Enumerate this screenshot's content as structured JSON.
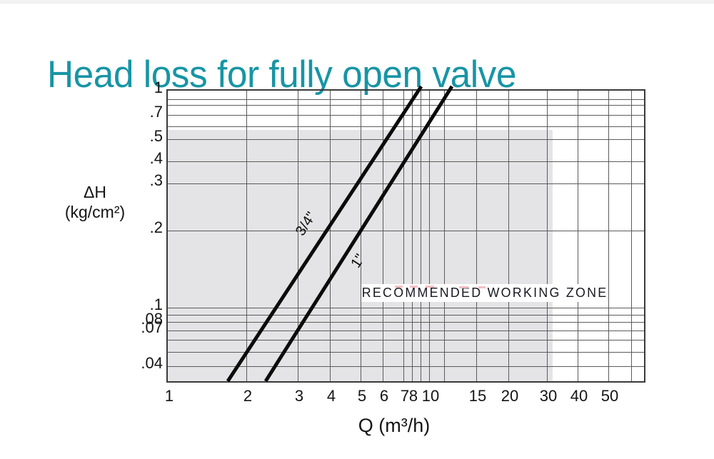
{
  "page": {
    "title": "Head loss for fully open valve",
    "title_color": "#1795A5"
  },
  "chart_data": {
    "type": "line",
    "title": "Head loss for fully open valve",
    "xlabel": "Q (m³/h)",
    "ylabel": "ΔH (kg/cm²)",
    "ylabel_line1": "ΔH",
    "ylabel_line2": "(kg/cm²)",
    "x_scale": "log",
    "y_scale": "log",
    "xlim": [
      1,
      60
    ],
    "ylim": [
      0.03,
      1
    ],
    "grid": true,
    "x_ticks": [
      "1",
      "2",
      "3",
      "4",
      "5",
      "6",
      "7",
      "8",
      "10",
      "15",
      "20",
      "30",
      "40",
      "50"
    ],
    "y_ticks": [
      "1",
      ".7",
      ".5",
      ".4",
      ".3",
      ".2",
      ".1",
      ".08",
      ".07",
      ".04"
    ],
    "line_color": "#0b0b0b",
    "series": [
      {
        "name": "3/4\"",
        "points_q_dh": [
          [
            1.7,
            0.033
          ],
          [
            2.6,
            0.1
          ],
          [
            3.9,
            0.2
          ],
          [
            6.1,
            0.5
          ],
          [
            8.7,
            1.0
          ]
        ]
      },
      {
        "name": "1\"",
        "points_q_dh": [
          [
            2.2,
            0.033
          ],
          [
            3.4,
            0.1
          ],
          [
            5.0,
            0.2
          ],
          [
            8.6,
            0.5
          ],
          [
            10.8,
            1.0
          ]
        ]
      }
    ],
    "annotations": {
      "zone_label": "RECOMMENDED WORKING ZONE",
      "zone_q_max": 32,
      "zone_dh_max": 0.55,
      "zone_color": "#e4e4e6"
    }
  }
}
